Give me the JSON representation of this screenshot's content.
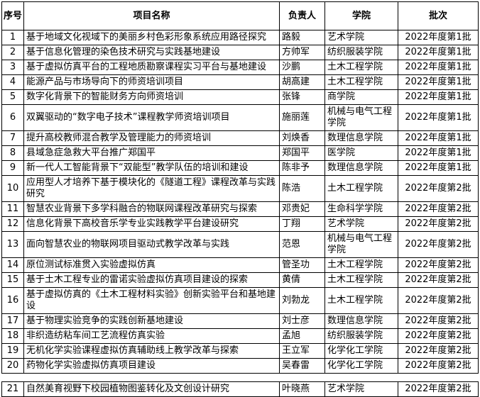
{
  "table": {
    "headers": [
      "序号",
      "项目名称",
      "负责人",
      "学院",
      "批次"
    ],
    "rows": [
      {
        "no": "1",
        "name": "基于地域文化视域下的美丽乡村色彩形象系统应用路径探究",
        "person": "路毅",
        "college": "艺术学院",
        "batch": "2022年度第1批"
      },
      {
        "no": "2",
        "name": "基于信息化管理的染色技术研究与实践基地建设",
        "person": "方帅军",
        "college": "纺织服装学院",
        "batch": "2022年度第1批"
      },
      {
        "no": "3",
        "name": "基于虚拟仿真平台的工程地质勘察课程实习平台与基地建设",
        "person": "沙鹏",
        "college": "土木工程学院",
        "batch": "2022年度第1批"
      },
      {
        "no": "4",
        "name": "能源产品与市场导向下的师资培训项目",
        "person": "胡高建",
        "college": "土木工程学院",
        "batch": "2022年度第1批"
      },
      {
        "no": "5",
        "name": "数字化背景下的智能财务方向师资培训",
        "person": "张锋",
        "college": "商学院",
        "batch": "2022年度第1批"
      },
      {
        "no": "6",
        "name": "双翼驱动的“数字电子技术”课程教学师资培训项目",
        "person": "施丽莲",
        "college": "机械与电气工程学院",
        "batch": "2022年度第1批"
      },
      {
        "no": "7",
        "name": "提升高校教师混合教学及管理能力的师资培训",
        "person": "刘焕香",
        "college": "数理信息学院",
        "batch": "2022年度第1批"
      },
      {
        "no": "8",
        "name": "县域急症急救大平台推广郑国平",
        "person": "郑国平",
        "college": "医学院",
        "batch": "2022年度第1批"
      },
      {
        "no": "9",
        "name": "新一代人工智能背景下“双能型”教学队伍的培训和建设",
        "person": "陈非予",
        "college": "数理信息学院",
        "batch": "2022年度第1批"
      },
      {
        "no": "10",
        "name": "应用型人才培养下基于模块化的《隧道工程》课程改革与实践研究",
        "person": "陈浩",
        "college": "土木工程学院",
        "batch": "2022年度第2批"
      },
      {
        "no": "11",
        "name": "智慧农业背景下多学科融合的物联网课程改革研究与探索",
        "person": "邓贵妃",
        "college": "生命科学学院",
        "batch": "2022年度第2批"
      },
      {
        "no": "12",
        "name": "信息化背景下高校音乐学专业实践教学平台建设研究",
        "person": "丁翔",
        "college": "艺术学院",
        "batch": "2022年度第2批"
      },
      {
        "no": "13",
        "name": "面向智慧农业的物联网项目驱动式教学改革与实践",
        "person": "范恩",
        "college": "机械与电气工程学院",
        "batch": "2022年度第2批"
      },
      {
        "no": "14",
        "name": "原位测试标准贯入实验虚拟仿真",
        "person": "管圣功",
        "college": "土木工程学院",
        "batch": "2022年度第2批"
      },
      {
        "no": "15",
        "name": "基于土木工程专业的雷诺实验虚拟仿真项目建设的探索",
        "person": "黄倩",
        "college": "土木工程学院",
        "batch": "2022年度第2批"
      },
      {
        "no": "16",
        "name": "基于虚拟仿真的《土木工程材料实验》创新实验平台和基地建设",
        "person": "刘勃龙",
        "college": "土木工程学院",
        "batch": "2022年度第2批"
      },
      {
        "no": "17",
        "name": "基于物理实验竞争的实践创新基地建设",
        "person": "刘士彦",
        "college": "数理信息学院",
        "batch": "2022年度第2批"
      },
      {
        "no": "18",
        "name": "非织造纺粘车间工艺流程仿真实验",
        "person": "孟旭",
        "college": "纺织服装学院",
        "batch": "2022年度第2批"
      },
      {
        "no": "19",
        "name": "无机化学实验课程虚拟仿真辅助线上教学改革与探索",
        "person": "王立军",
        "college": "化学化工学院",
        "batch": "2022年度第2批"
      },
      {
        "no": "20",
        "name": "药物化学实验虚拟仿真项目建设",
        "person": "吴春雷",
        "college": "化学化工学院",
        "batch": "2022年度第2批"
      }
    ],
    "continuation_rows": [
      {
        "no": "21",
        "name": "自然美育视野下校园植物图鉴转化及文创设计研究",
        "person": "叶晓燕",
        "college": "艺术学院",
        "batch": "2022年度第2批"
      }
    ],
    "colors": {
      "text": "#000000",
      "border": "#000000",
      "background": "#ffffff"
    }
  }
}
